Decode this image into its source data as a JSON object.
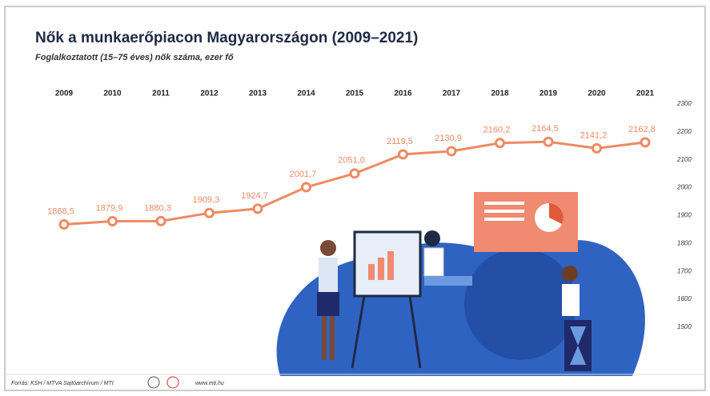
{
  "chart_data": {
    "type": "line",
    "title": "Nők a munkaerőpiacon Magyarországon (2009–2021)",
    "subtitle": "Foglalkoztatott (15–75 éves) nők száma, ezer fő",
    "categories": [
      "2009",
      "2010",
      "2011",
      "2012",
      "2013",
      "2014",
      "2015",
      "2016",
      "2017",
      "2018",
      "2019",
      "2020",
      "2021"
    ],
    "values": [
      1868.5,
      1879.9,
      1880.3,
      1909.3,
      1924.7,
      2001.7,
      2051.0,
      2119.5,
      2130.9,
      2160.2,
      2164.5,
      2141.2,
      2162.8
    ],
    "value_labels": [
      "1868,5",
      "1879,9",
      "1880,3",
      "1909,3",
      "1924,7",
      "2001,7",
      "2051,0",
      "2119,5",
      "2130,9",
      "2160,2",
      "2164,5",
      "2141,2",
      "2162,8"
    ],
    "color": "#ee8a63",
    "ylim": [
      1500,
      2300
    ],
    "yticks": [
      1500,
      1600,
      1700,
      1800,
      1900,
      2000,
      2100,
      2200,
      2300
    ],
    "source": "Forrás: KSH / MTVA Sajtóarchívum / MTI",
    "website": "www.mti.hu"
  }
}
